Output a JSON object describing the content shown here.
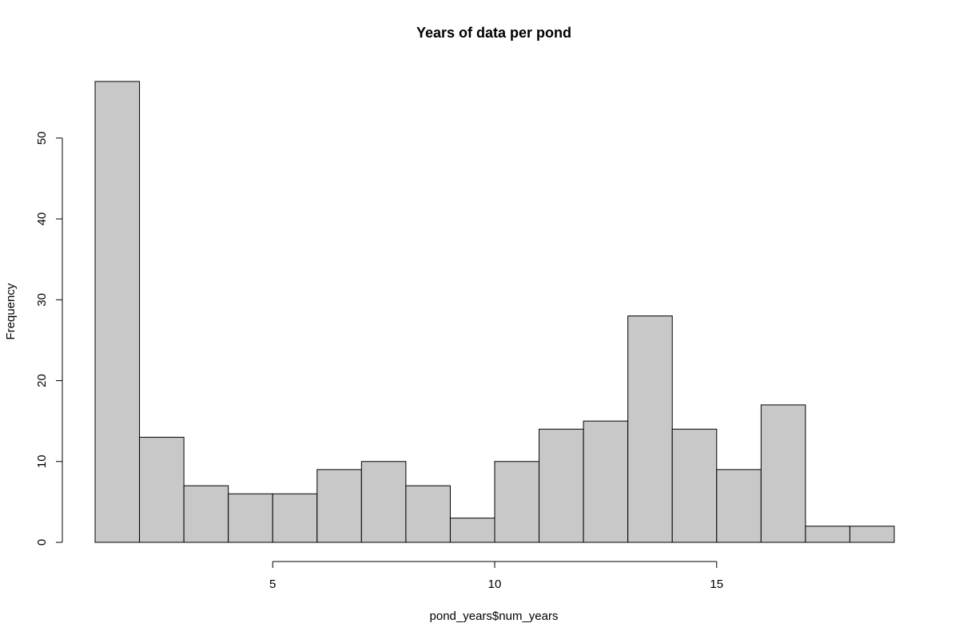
{
  "chart_data": {
    "type": "bar",
    "title": "Years of data per pond",
    "xlabel": "pond_years$num_years",
    "ylabel": "Frequency",
    "bin_edges": [
      1,
      2,
      3,
      4,
      5,
      6,
      7,
      8,
      9,
      10,
      11,
      12,
      13,
      14,
      15,
      16,
      17,
      18,
      19
    ],
    "values": [
      57,
      13,
      7,
      6,
      6,
      9,
      10,
      7,
      3,
      10,
      14,
      15,
      28,
      14,
      9,
      17,
      2,
      2
    ],
    "xlim": [
      1,
      19
    ],
    "ylim": [
      0,
      57
    ],
    "x_ticks": [
      5,
      10,
      15
    ],
    "y_ticks": [
      0,
      10,
      20,
      30,
      40,
      50
    ],
    "bar_color": "#c8c8c8",
    "grid": false,
    "legend": "none"
  }
}
